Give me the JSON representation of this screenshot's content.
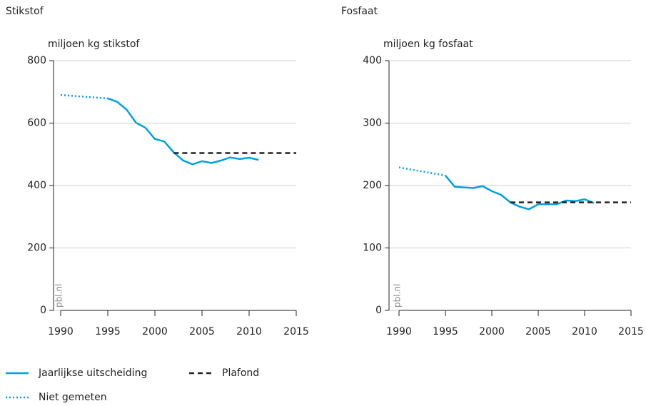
{
  "chart_data": [
    {
      "type": "line",
      "title": "Stikstof",
      "ylabel": "miljoen kg stikstof",
      "source": "pbl.nl",
      "xlim": [
        1990,
        2015
      ],
      "xticks": [
        1990,
        1995,
        2000,
        2005,
        2010,
        2015
      ],
      "ylim": [
        0,
        800
      ],
      "yticks": [
        0,
        200,
        400,
        600,
        800
      ],
      "grid": true,
      "series": [
        {
          "name": "Jaarlijkse uitscheiding",
          "color": "#00a0e0",
          "dash": "solid",
          "x": [
            1995,
            1996,
            1997,
            1998,
            1999,
            2000,
            2001,
            2002,
            2003,
            2004,
            2005,
            2006,
            2007,
            2008,
            2009,
            2010,
            2011
          ],
          "values": [
            679,
            668,
            643,
            601,
            585,
            549,
            541,
            506,
            480,
            468,
            478,
            472,
            480,
            490,
            485,
            489,
            482
          ]
        },
        {
          "name": "Plafond",
          "color": "#222222",
          "dash": "dashed",
          "x": [
            2002,
            2015
          ],
          "values": [
            504,
            504
          ]
        },
        {
          "name": "Niet gemeten",
          "color": "#00a0e0",
          "dash": "dotted",
          "x": [
            1990,
            1995
          ],
          "values": [
            690,
            679
          ]
        }
      ]
    },
    {
      "type": "line",
      "title": "Fosfaat",
      "ylabel": "miljoen kg fosfaat",
      "source": "pbl.nl",
      "xlim": [
        1990,
        2015
      ],
      "xticks": [
        1990,
        1995,
        2000,
        2005,
        2010,
        2015
      ],
      "ylim": [
        0,
        400
      ],
      "yticks": [
        0,
        100,
        200,
        300,
        400
      ],
      "grid": true,
      "series": [
        {
          "color": "#00a0e0",
          "dash": "solid",
          "x": [
            1995,
            1996,
            1997,
            1998,
            1999,
            2000,
            2001,
            2002,
            2003,
            2004,
            2005,
            2006,
            2007,
            2008,
            2009,
            2010,
            2011
          ],
          "values": [
            216,
            198,
            197,
            196,
            199,
            191,
            185,
            173,
            166,
            162,
            170,
            170,
            170,
            176,
            175,
            178,
            172
          ]
        },
        {
          "color": "#222222",
          "dash": "dashed",
          "x": [
            2002,
            2015
          ],
          "values": [
            173,
            173
          ]
        },
        {
          "color": "#00a0e0",
          "dash": "dotted",
          "x": [
            1990,
            1995
          ],
          "values": [
            229,
            216
          ]
        }
      ]
    }
  ]
}
